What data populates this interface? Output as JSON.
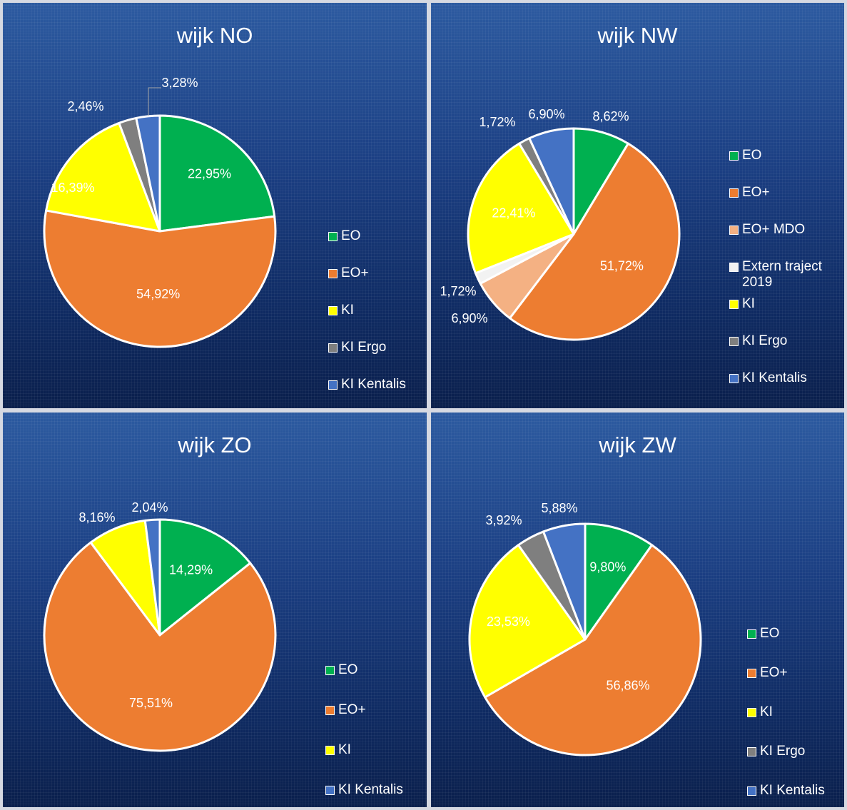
{
  "chart_data": [
    {
      "type": "pie",
      "title": "wijk NO",
      "categories": [
        "EO",
        "EO+",
        "KI",
        "KI Ergo",
        "KI Kentalis"
      ],
      "values": [
        22.95,
        54.92,
        16.39,
        2.46,
        3.28
      ],
      "labels": [
        "22,95%",
        "54,92%",
        "16,39%",
        "2,46%",
        "3,28%"
      ],
      "colors": [
        "#00b050",
        "#ed7d31",
        "#ffff00",
        "#7f7f7f",
        "#4472c4"
      ],
      "legend": "right"
    },
    {
      "type": "pie",
      "title": "wijk NW",
      "categories": [
        "EO",
        "EO+",
        "EO+ MDO",
        "Extern traject 2019",
        "KI",
        "KI Ergo",
        "KI Kentalis"
      ],
      "values": [
        8.62,
        51.72,
        6.9,
        1.72,
        22.41,
        1.72,
        6.9
      ],
      "labels": [
        "8,62%",
        "51,72%",
        "6,90%",
        "1,72%",
        "22,41%",
        "1,72%",
        "6,90%"
      ],
      "colors": [
        "#00b050",
        "#ed7d31",
        "#f4b183",
        "#f2f2f2",
        "#ffff00",
        "#7f7f7f",
        "#4472c4"
      ],
      "legend": "right"
    },
    {
      "type": "pie",
      "title": "wijk ZO",
      "categories": [
        "EO",
        "EO+",
        "KI",
        "KI Kentalis"
      ],
      "values": [
        14.29,
        75.51,
        8.16,
        2.04
      ],
      "labels": [
        "14,29%",
        "75,51%",
        "8,16%",
        "2,04%"
      ],
      "colors": [
        "#00b050",
        "#ed7d31",
        "#ffff00",
        "#4472c4"
      ],
      "legend": "right"
    },
    {
      "type": "pie",
      "title": "wijk ZW",
      "categories": [
        "EO",
        "EO+",
        "KI",
        "KI Ergo",
        "KI Kentalis"
      ],
      "values": [
        9.8,
        56.86,
        23.53,
        3.92,
        5.88
      ],
      "labels": [
        "9,80%",
        "56,86%",
        "23,53%",
        "3,92%",
        "5,88%"
      ],
      "colors": [
        "#00b050",
        "#ed7d31",
        "#ffff00",
        "#7f7f7f",
        "#4472c4"
      ],
      "legend": "right"
    }
  ]
}
